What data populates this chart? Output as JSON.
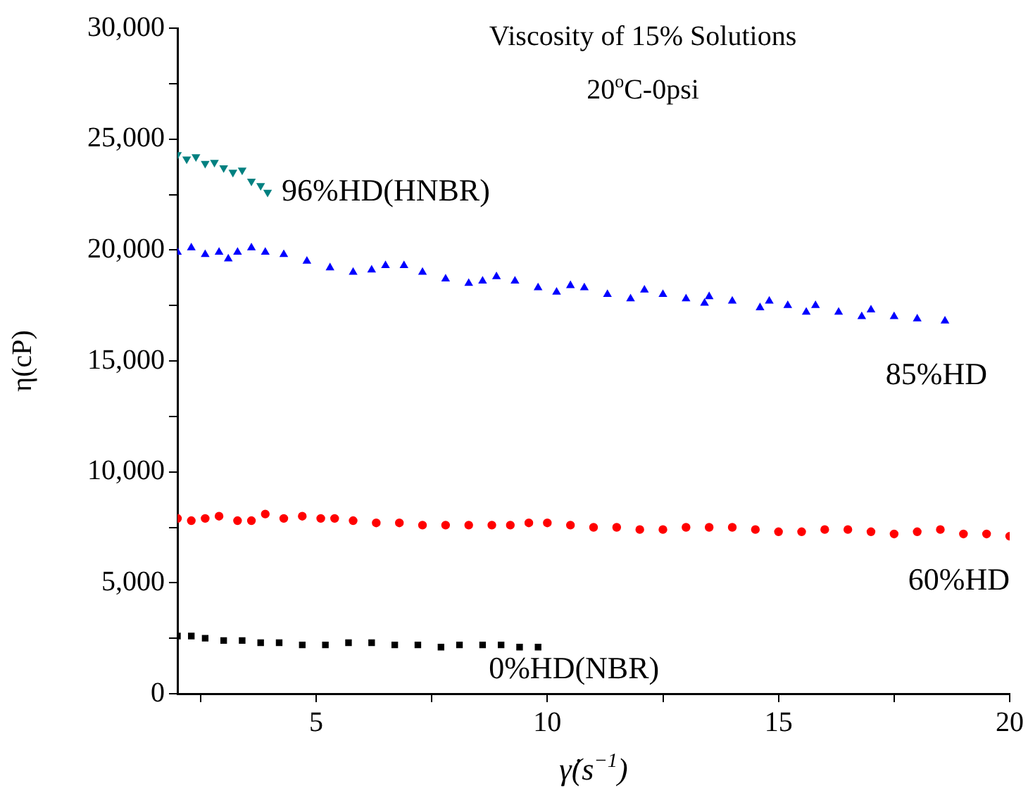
{
  "chart_data": {
    "type": "scatter",
    "title": "Viscosity of 15% Solutions",
    "subtitle": "20$^{o}$C-0psi",
    "xlabel": "γ̇(s$^{−1}$)",
    "ylabel": "η(cP)",
    "xlim": [
      2,
      20
    ],
    "xticks": [
      {
        "value": 2.5,
        "label": null
      },
      5,
      {
        "value": 7.5,
        "label": null
      },
      10,
      {
        "value": 12.5,
        "label": null
      },
      15,
      {
        "value": 17.5,
        "label": null
      },
      20
    ],
    "ylim": [
      0,
      30000
    ],
    "yticks": [
      0,
      {
        "value": 2500,
        "label": null
      },
      {
        "value": 5000,
        "label": "5,000"
      },
      {
        "value": 7500,
        "label": null
      },
      {
        "value": 10000,
        "label": "10,000"
      },
      {
        "value": 12500,
        "label": null
      },
      {
        "value": 15000,
        "label": "15,000"
      },
      {
        "value": 17500,
        "label": null
      },
      {
        "value": 20000,
        "label": "20,000"
      },
      {
        "value": 22500,
        "label": null
      },
      {
        "value": 25000,
        "label": "25,000"
      },
      {
        "value": 27500,
        "label": null
      },
      {
        "value": 30000,
        "label": "30,000"
      }
    ],
    "grid": false,
    "legend": false,
    "series": [
      {
        "name": "96%HD(HNBR)",
        "color": "#008080",
        "marker": "triangle",
        "x": [
          2.0,
          2.2,
          2.4,
          2.6,
          2.8,
          3.0,
          3.2,
          3.4,
          3.6,
          3.8,
          3.95
        ],
        "values": [
          24300,
          24100,
          24200,
          23900,
          23950,
          23700,
          23500,
          23600,
          23100,
          22900,
          22600
        ]
      },
      {
        "name": "85%HD",
        "color": "#0000ff",
        "marker": "triangle",
        "x": [
          2,
          2.3,
          2.6,
          2.9,
          3.1,
          3.3,
          3.6,
          3.9,
          4.3,
          4.8,
          5.3,
          5.8,
          6.2,
          6.5,
          6.9,
          7.3,
          7.8,
          8.3,
          8.6,
          8.9,
          9.3,
          9.8,
          10.2,
          10.5,
          10.8,
          11.3,
          11.8,
          12.1,
          12.5,
          13.0,
          13.4,
          13.5,
          14.0,
          14.6,
          14.8,
          15.2,
          15.6,
          15.8,
          16.3,
          16.8,
          17.0,
          17.5,
          18.0,
          18.6
        ],
        "values": [
          19900,
          20100,
          19800,
          19900,
          19600,
          19900,
          20100,
          19900,
          19800,
          19500,
          19200,
          19000,
          19100,
          19300,
          19300,
          19000,
          18700,
          18500,
          18600,
          18800,
          18600,
          18300,
          18100,
          18400,
          18300,
          18000,
          17800,
          18200,
          18000,
          17800,
          17600,
          17900,
          17700,
          17400,
          17700,
          17500,
          17200,
          17500,
          17200,
          17000,
          17300,
          17000,
          16900,
          16800
        ]
      },
      {
        "name": "60%HD",
        "color": "#ff0000",
        "marker": "circle",
        "x": [
          2,
          2.3,
          2.6,
          2.9,
          3.3,
          3.6,
          3.9,
          4.3,
          4.7,
          5.1,
          5.4,
          5.8,
          6.3,
          6.8,
          7.3,
          7.8,
          8.3,
          8.8,
          9.2,
          9.6,
          10.0,
          10.5,
          11.0,
          11.5,
          12.0,
          12.5,
          13.0,
          13.5,
          14.0,
          14.5,
          15.0,
          15.5,
          16.0,
          16.5,
          17.0,
          17.5,
          18.0,
          18.5,
          19.0,
          19.5,
          20.0
        ],
        "values": [
          7900,
          7800,
          7900,
          8000,
          7800,
          7800,
          8100,
          7900,
          8000,
          7900,
          7900,
          7800,
          7700,
          7700,
          7600,
          7600,
          7600,
          7600,
          7600,
          7700,
          7700,
          7600,
          7500,
          7500,
          7400,
          7400,
          7500,
          7500,
          7500,
          7400,
          7300,
          7300,
          7400,
          7400,
          7300,
          7200,
          7300,
          7400,
          7200,
          7200,
          7100
        ]
      },
      {
        "name": "0%HD(NBR)",
        "color": "#000000",
        "marker": "square",
        "x": [
          2,
          2.3,
          2.6,
          3,
          3.4,
          3.8,
          4.2,
          4.7,
          5.2,
          5.7,
          6.2,
          6.7,
          7.2,
          7.7,
          8.1,
          8.6,
          9.0,
          9.4,
          9.8
        ],
        "values": [
          2600,
          2600,
          2500,
          2400,
          2400,
          2300,
          2300,
          2200,
          2200,
          2300,
          2300,
          2200,
          2200,
          2100,
          2200,
          2200,
          2200,
          2100,
          2100
        ]
      }
    ]
  }
}
